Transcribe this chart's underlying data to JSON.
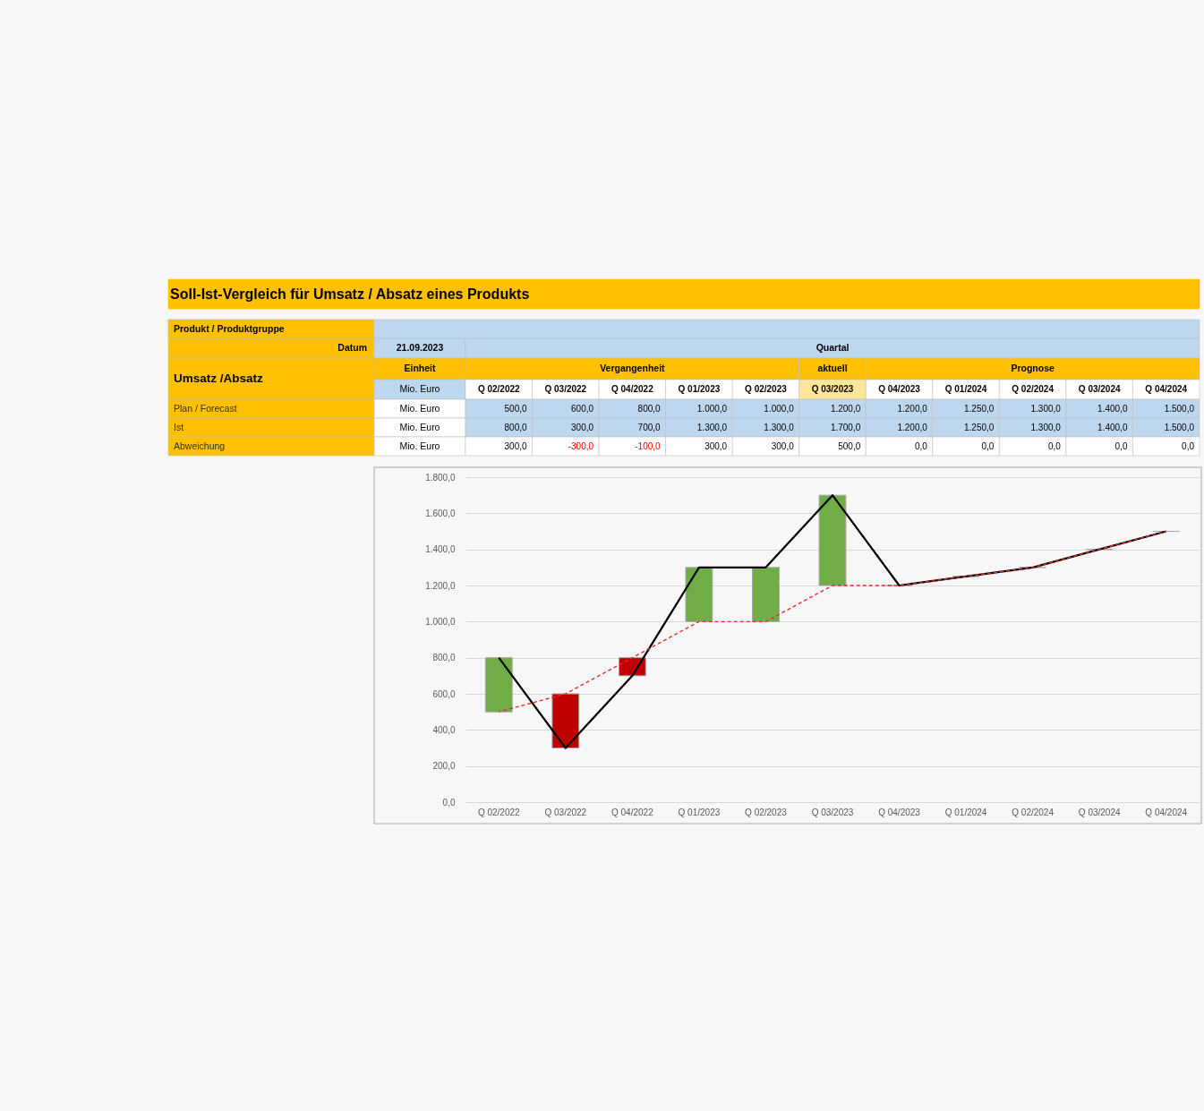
{
  "chart_data": {
    "type": "line",
    "title": "Soll-Ist-Vergleich für Umsatz / Absatz eines Produkts",
    "categories": [
      "Q 02/2022",
      "Q 03/2022",
      "Q 04/2022",
      "Q 01/2023",
      "Q 02/2023",
      "Q 03/2023",
      "Q 04/2023",
      "Q 01/2024",
      "Q 02/2024",
      "Q 03/2024",
      "Q 04/2024"
    ],
    "series": [
      {
        "color": "#e32d2d",
        "line_style": "dashed",
        "values": [
          500,
          600,
          800,
          1000,
          1000,
          1200,
          1200,
          1250,
          1300,
          1400,
          1500
        ],
        "value_labels": [
          "500,0",
          "600,0",
          "800,0",
          "1.000,0",
          "1.000,0",
          "1.200,0",
          "1.200,0",
          "1.250,0",
          "1.300,0",
          "1.400,0",
          "1.500,0"
        ]
      },
      {
        "color": "#000000",
        "line_style": "solid",
        "values": [
          800,
          300,
          700,
          1300,
          1300,
          1700,
          1200,
          1250,
          1300,
          1400,
          1500
        ],
        "value_labels": [
          "800,0",
          "300,0",
          "700,0",
          "1.300,0",
          "1.300,0",
          "1.700,0",
          "1.200,0",
          "1.250,0",
          "1.300,0",
          "1.400,0",
          "1.500,0"
        ]
      },
      {
        "type": "bar",
        "base": [
          500,
          600,
          800,
          1000,
          1000,
          1200,
          1200,
          1250,
          1300,
          1400,
          1500
        ],
        "values": [
          300,
          -300,
          -100,
          300,
          300,
          500,
          0,
          0,
          0,
          0,
          0
        ],
        "colors": [
          "#70ad47",
          "#c00000",
          "#c00000",
          "#70ad47",
          "#70ad47",
          "#70ad47",
          "#a6a6a6",
          "#a6a6a6",
          "#a6a6a6",
          "#a6a6a6",
          "#a6a6a6"
        ],
        "value_labels": [
          "300,0",
          "-300,0",
          "-100,0",
          "300,0",
          "300,0",
          "500,0",
          "0,0",
          "0,0",
          "0,0",
          "0,0",
          "0,0"
        ]
      }
    ],
    "ylim": [
      0,
      1800
    ],
    "yticks": [
      {
        "value": 0,
        "label": "0,0"
      },
      {
        "value": 200,
        "label": "200,0"
      },
      {
        "value": 400,
        "label": "400,0"
      },
      {
        "value": 600,
        "label": "600,0"
      },
      {
        "value": 800,
        "label": "800,0"
      },
      {
        "value": 1000,
        "label": "1.000,0"
      },
      {
        "value": 1200,
        "label": "1.200,0"
      },
      {
        "value": 1400,
        "label": "1.400,0"
      },
      {
        "value": 1600,
        "label": "1.600,0"
      },
      {
        "value": 1800,
        "label": "1.800,0"
      }
    ],
    "grid": "y",
    "annotations": [
      "Produkt / Produktgruppe",
      "Datum",
      "21.09.2023",
      "Quartal",
      "Umsatz /Absatz",
      "Einheit",
      "Vergangenheit",
      "aktuell",
      "Prognose",
      "Mio. Euro",
      "Plan / Forecast",
      "Mio. Euro",
      "Ist",
      "Mio. Euro",
      "Abweichung",
      "Mio. Euro"
    ]
  }
}
